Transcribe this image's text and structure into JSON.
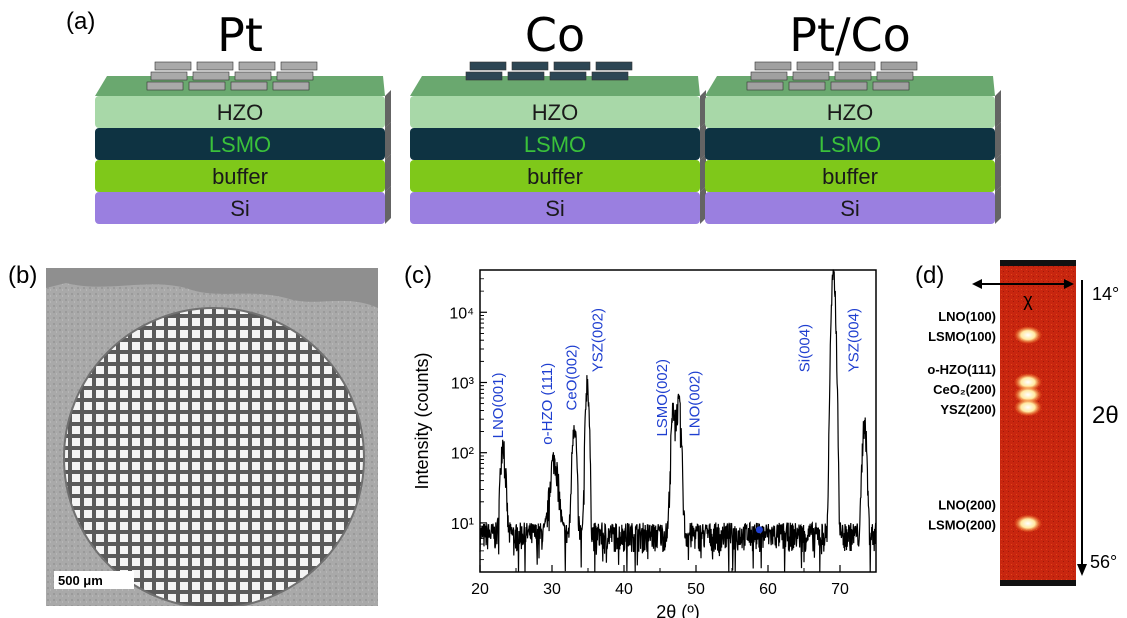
{
  "panels": {
    "a": {
      "label": "(a)",
      "stacks": [
        {
          "title": "Pt",
          "electrode_color": "#a9a9a9"
        },
        {
          "title": "Co",
          "electrode_color": "#2d4654"
        },
        {
          "title": "Pt/Co",
          "electrode_color": "#a0a0a0"
        }
      ],
      "layers": [
        {
          "name": "HZO",
          "color": "#a8d8a8",
          "text_color": "#1a1a1a"
        },
        {
          "name": "LSMO",
          "color": "#0e3342",
          "text_color": "#3ac13a"
        },
        {
          "name": "buffer",
          "color": "#7fc81a",
          "text_color": "#1a1a1a"
        },
        {
          "name": "Si",
          "color": "#9a7fe0",
          "text_color": "#1a1a1a"
        }
      ]
    },
    "b": {
      "label": "(b)",
      "scalebar": "500 μm"
    },
    "c": {
      "label": "(c)"
    },
    "d": {
      "label": "(d)",
      "chi": "χ",
      "top_angle": "14°",
      "bottom_angle": "56°",
      "axis": "2θ",
      "peaks": [
        {
          "lines": [
            "LNO(100)",
            "LSMO(100)"
          ],
          "pos": 0.22
        },
        {
          "lines": [
            "o-HZO(111)",
            "CeO₂(200)",
            "YSZ(200)"
          ],
          "pos": 0.42
        },
        {
          "lines": [
            "LNO(200)",
            "LSMO(200)"
          ],
          "pos": 0.82
        }
      ]
    }
  },
  "chart_data": {
    "type": "line",
    "xlabel": "2θ (º)",
    "ylabel": "Intensity (counts)",
    "xlim": [
      20,
      75
    ],
    "ylim_log": [
      2,
      40000
    ],
    "yscale": "log",
    "xticks": [
      20,
      30,
      40,
      50,
      60,
      70
    ],
    "yticks": [
      {
        "v": 10,
        "label": "10¹"
      },
      {
        "v": 100,
        "label": "10²"
      },
      {
        "v": 1000,
        "label": "10³"
      },
      {
        "v": 10000,
        "label": "10⁴"
      }
    ],
    "peaks": [
      {
        "x": 23.2,
        "y": 140,
        "w": 0.35
      },
      {
        "x": 30.3,
        "y": 75,
        "w": 0.6
      },
      {
        "x": 33.1,
        "y": 270,
        "w": 0.3
      },
      {
        "x": 34.9,
        "y": 1050,
        "w": 0.25
      },
      {
        "x": 46.9,
        "y": 430,
        "w": 0.35
      },
      {
        "x": 47.6,
        "y": 480,
        "w": 0.35
      },
      {
        "x": 69.1,
        "y": 34000,
        "w": 0.28
      },
      {
        "x": 73.4,
        "y": 270,
        "w": 0.3
      }
    ],
    "baseline": 7,
    "annotations": [
      {
        "text": "LNO(001)",
        "x": 23.2,
        "y": 160
      },
      {
        "text": "o-HZO (111)",
        "x": 30.0,
        "y": 130
      },
      {
        "text": "CeO(002)",
        "x": 33.4,
        "y": 400
      },
      {
        "text": "YSZ(002)",
        "x": 37.0,
        "y": 1400
      },
      {
        "text": "LSMO(002)",
        "x": 46.0,
        "y": 170
      },
      {
        "text": "LNO(002)",
        "x": 50.5,
        "y": 170
      },
      {
        "text": "Si(004)",
        "x": 65.8,
        "y": 1400
      },
      {
        "text": "YSZ(004)",
        "x": 72.6,
        "y": 1400
      }
    ],
    "marker": {
      "x": 58.8,
      "y": 8
    }
  }
}
